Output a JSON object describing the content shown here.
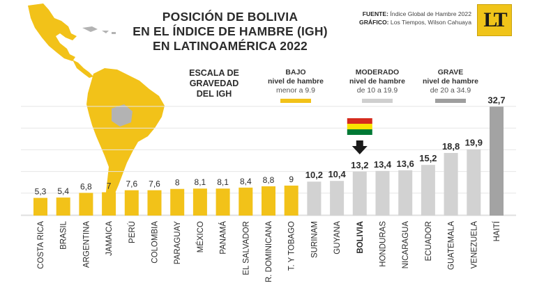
{
  "header": {
    "title_lines": [
      "POSICIÓN DE BOLIVIA",
      "EN EL ÍNDICE DE HAMBRE (IGH)",
      "EN LATINOAMÉRICA 2022"
    ],
    "source_label": "FUENTE:",
    "source_value": "Índice Global de Hambre 2022",
    "graphic_label": "GRÁFICO:",
    "graphic_value": "Los Tiempos, Wilson Cahuaya",
    "logo_text": "LT"
  },
  "legend": {
    "title": "ESCALA DE GRAVEDAD DEL IGH",
    "items": [
      {
        "level": "BAJO",
        "subtitle": "nivel de hambre",
        "range": "menor a 9.9",
        "color": "#f2c219"
      },
      {
        "level": "MODERADO",
        "subtitle": "nivel de hambre",
        "range": "de 10 a 19.9",
        "color": "#cfcfcf"
      },
      {
        "level": "GRAVE",
        "subtitle": "nivel de hambre",
        "range": "de 20 a 34.9",
        "color": "#9e9e9e"
      }
    ]
  },
  "colors": {
    "bajo": "#f2c219",
    "moderado": "#d2d2d2",
    "grave": "#a3a3a3",
    "map_land": "#f2c219",
    "map_other": "#b3b3b3",
    "flag": [
      "#d52b1e",
      "#f9e300",
      "#007934"
    ],
    "arrow": "#1a1a1a"
  },
  "chart_data": {
    "type": "bar",
    "title": "POSICIÓN DE BOLIVIA EN EL ÍNDICE DE HAMBRE (IGH) EN LATINOAMÉRICA 2022",
    "categories": [
      "COSTA RICA",
      "BRASIL",
      "ARGENTINA",
      "JAMAICA",
      "PERÚ",
      "COLOMBIA",
      "PARAGUAY",
      "MÉXICO",
      "PANAMÁ",
      "EL SALVADOR",
      "R. DOMINICANA",
      "T. Y TOBAGO",
      "SURINAM",
      "GUYANA",
      "BOLIVIA",
      "HONDURAS",
      "NICARAGUA",
      "ECUADOR",
      "GUATEMALA",
      "VENEZUELA",
      "HAITÍ"
    ],
    "values": [
      5.3,
      5.4,
      6.8,
      7,
      7.6,
      7.6,
      8,
      8.1,
      8.1,
      8.4,
      8.8,
      9,
      10.2,
      10.4,
      13.2,
      13.4,
      13.6,
      15.2,
      18.8,
      19.9,
      32.7
    ],
    "value_labels": [
      "5,3",
      "5,4",
      "6,8",
      "7",
      "7,6",
      "7,6",
      "8",
      "8,1",
      "8,1",
      "8,4",
      "8,8",
      "9",
      "10,2",
      "10,4",
      "13,2",
      "13,4",
      "13,6",
      "15,2",
      "18,8",
      "19,9",
      "32,7"
    ],
    "levels": [
      "bajo",
      "bajo",
      "bajo",
      "bajo",
      "bajo",
      "bajo",
      "bajo",
      "bajo",
      "bajo",
      "bajo",
      "bajo",
      "bajo",
      "moderado",
      "moderado",
      "moderado",
      "moderado",
      "moderado",
      "moderado",
      "moderado",
      "moderado",
      "grave"
    ],
    "highlight": "BOLIVIA",
    "ylim": [
      0,
      33
    ],
    "grid": true,
    "xlabel": "",
    "ylabel": ""
  }
}
